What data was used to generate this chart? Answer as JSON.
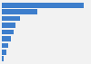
{
  "values": [
    5800,
    2500,
    1280,
    980,
    820,
    650,
    470,
    340,
    110
  ],
  "bar_color": "#3d7ecc",
  "background_color": "#f2f2f2",
  "border_color": "#cccccc",
  "xlim": [
    0,
    6200
  ],
  "bar_height": 0.75,
  "figsize": [
    1.0,
    0.71
  ],
  "dpi": 100
}
